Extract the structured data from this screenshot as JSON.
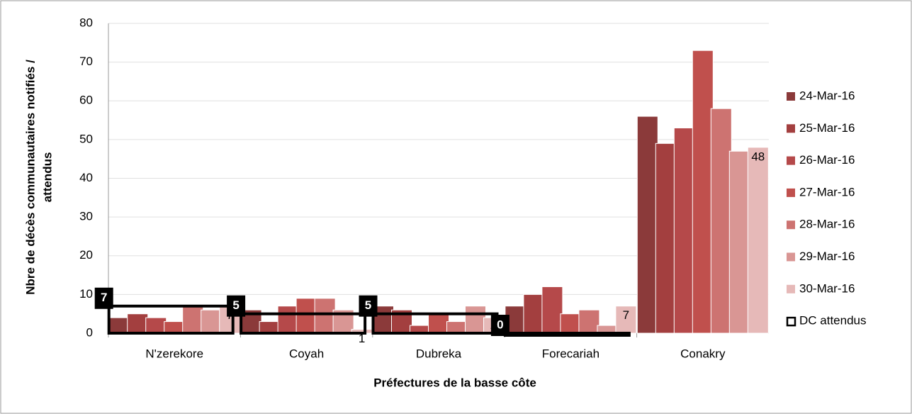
{
  "chart_data": {
    "type": "bar",
    "xlabel": "Préfectures de la basse côte",
    "ylabel": [
      "Nbre de décès communautaires notifiés /",
      "attendus"
    ],
    "categories": [
      "N'zerekore",
      "Coyah",
      "Dubreka",
      "Forecariah",
      "Conakry"
    ],
    "series": [
      {
        "name": "24-Mar-16",
        "color": "#8b3a3a",
        "values": [
          4,
          6,
          7,
          7,
          56
        ]
      },
      {
        "name": "25-Mar-16",
        "color": "#a33f3f",
        "values": [
          5,
          3,
          6,
          10,
          49
        ]
      },
      {
        "name": "26-Mar-16",
        "color": "#b5494a",
        "values": [
          4,
          7,
          2,
          12,
          53
        ]
      },
      {
        "name": "27-Mar-16",
        "color": "#c0504d",
        "values": [
          3,
          9,
          5,
          5,
          73
        ]
      },
      {
        "name": "28-Mar-16",
        "color": "#cd7371",
        "values": [
          7,
          9,
          3,
          6,
          58
        ]
      },
      {
        "name": "29-Mar-16",
        "color": "#d99694",
        "values": [
          6,
          6,
          7,
          2,
          47
        ]
      },
      {
        "name": "30-Mar-16",
        "color": "#e6b9b8",
        "values": [
          7,
          1,
          4,
          7,
          48
        ],
        "data_labels": true
      }
    ],
    "expected": {
      "name": "DC attendus",
      "color": "#000000",
      "values": [
        7,
        5,
        5,
        0,
        null
      ]
    },
    "ylim": [
      0,
      80
    ],
    "yticks": [
      0,
      10,
      20,
      30,
      40,
      50,
      60,
      70,
      80
    ],
    "grid": true,
    "legend": "right"
  }
}
